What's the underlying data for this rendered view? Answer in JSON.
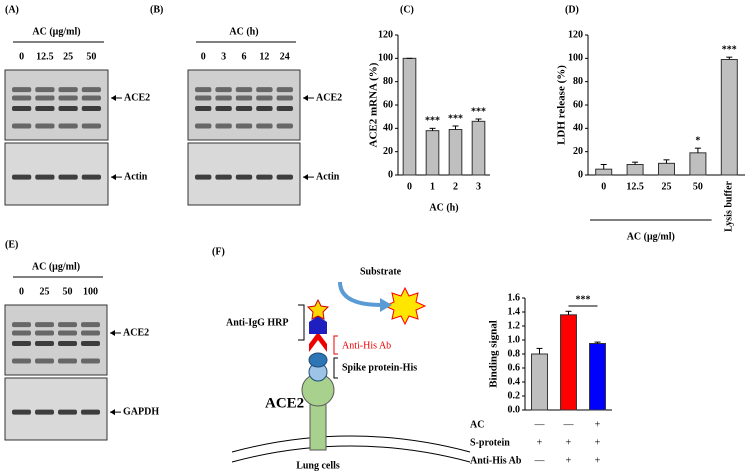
{
  "chart_data": [
    {
      "type": "bar",
      "label": "(C)",
      "ylabel": "ACE2 mRNA (%)",
      "xlabel": "AC (h)",
      "categories": [
        "0",
        "1",
        "2",
        "3"
      ],
      "values": [
        100,
        38,
        39,
        46
      ],
      "errors": [
        0,
        2,
        3,
        2
      ],
      "significance": [
        null,
        "***",
        "***",
        "***"
      ],
      "color": "#bfbfbf",
      "ylim": [
        0,
        120
      ],
      "yticks": [
        0,
        20,
        40,
        60,
        80,
        100,
        120
      ]
    },
    {
      "type": "bar",
      "label": "(D)",
      "ylabel": "LDH release (%)",
      "xlabel": "AC (μg/ml)",
      "categories": [
        "0",
        "12.5",
        "25",
        "50",
        "Lysis buffer"
      ],
      "values": [
        5,
        9,
        10,
        19,
        99
      ],
      "errors": [
        4,
        2,
        3,
        4,
        2
      ],
      "significance": [
        null,
        null,
        null,
        "*",
        "***"
      ],
      "color": "#bfbfbf",
      "ylim": [
        0,
        120
      ],
      "yticks": [
        0,
        20,
        40,
        60,
        80,
        100,
        120
      ]
    },
    {
      "type": "bar",
      "ylabel": "Binding signal",
      "values": [
        0.8,
        1.36,
        0.95
      ],
      "errors": [
        0.08,
        0.05,
        0.02
      ],
      "colors": [
        "#bfbfbf",
        "#ff0000",
        "#0000ff"
      ],
      "annotation": "***",
      "ylim": [
        0,
        1.6
      ],
      "yticks": [
        {
          "value": 0,
          "label": "0.0"
        },
        0.2,
        0.4,
        0.6,
        0.8,
        {
          "value": 1,
          "label": "1.0"
        },
        1.2,
        1.4,
        1.6
      ],
      "conditions": [
        {
          "name": "AC",
          "marks": [
            "—",
            "—",
            "+"
          ]
        },
        {
          "name": "S-protein",
          "marks": [
            "+",
            "+",
            "+"
          ]
        },
        {
          "name": "Anti-His Ab",
          "marks": [
            "—",
            "+",
            "+"
          ]
        }
      ]
    }
  ],
  "blots": [
    {
      "label": "(A)",
      "header": "AC (μg/ml)",
      "lanes": [
        "0",
        "12.5",
        "25",
        "50"
      ],
      "bands": [
        "ACE2",
        "Actin"
      ]
    },
    {
      "label": "(B)",
      "header": "AC (h)",
      "lanes": [
        "0",
        "3",
        "6",
        "12",
        "24"
      ],
      "bands": [
        "ACE2",
        "Actin"
      ]
    },
    {
      "label": "(E)",
      "header": "AC (μg/ml)",
      "lanes": [
        "0",
        "25",
        "50",
        "100"
      ],
      "bands": [
        "ACE2",
        "GAPDH"
      ]
    }
  ],
  "diagram": {
    "label": "(F)",
    "substrate": "Substrate",
    "hrp": "Anti-IgG HRP",
    "antibody": "Anti-His Ab",
    "spike": "Spike protein-His",
    "receptor": "ACE2",
    "cells": "Lung cells"
  }
}
